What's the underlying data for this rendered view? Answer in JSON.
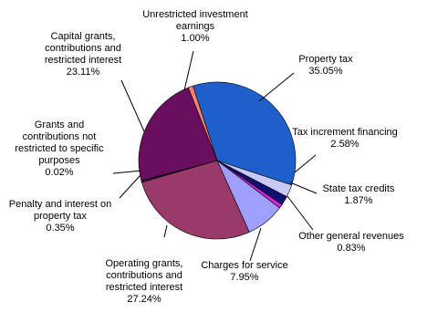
{
  "chart_data": {
    "type": "pie",
    "title": "",
    "slices": [
      {
        "name": "Property tax",
        "label_lines": [
          "Property tax"
        ],
        "value_label": "35.05%",
        "value": 35.05,
        "color": "#1f5fcc"
      },
      {
        "name": "Tax increment financing",
        "label_lines": [
          "Tax increment financing"
        ],
        "value_label": "2.58%",
        "value": 2.58,
        "color": "#c9c9f5"
      },
      {
        "name": "State tax credits",
        "label_lines": [
          "State tax credits"
        ],
        "value_label": "1.87%",
        "value": 1.87,
        "color": "#101070"
      },
      {
        "name": "Other general revenues",
        "label_lines": [
          "Other general revenues"
        ],
        "value_label": "0.83%",
        "value": 0.83,
        "color": "#e020e0"
      },
      {
        "name": "Charges for service",
        "label_lines": [
          "Charges for service"
        ],
        "value_label": "7.95%",
        "value": 7.95,
        "color": "#9f9fff"
      },
      {
        "name": "Operating grants, contributions and restricted interest",
        "label_lines": [
          "Operating grants,",
          "contributions and",
          "restricted interest"
        ],
        "value_label": "27.24%",
        "value": 27.24,
        "color": "#9a3a6b"
      },
      {
        "name": "Penalty and interest on property tax",
        "label_lines": [
          "Penalty and interest on",
          "property tax"
        ],
        "value_label": "0.35%",
        "value": 0.35,
        "color": "#3a1050"
      },
      {
        "name": "Grants and contributions not restricted to specific purposes",
        "label_lines": [
          "Grants and",
          "contributions not",
          "restricted to specific",
          "purposes"
        ],
        "value_label": "0.02%",
        "value": 0.02,
        "color": "#2a6ac9"
      },
      {
        "name": "Capital grants, contributions and restricted interest",
        "label_lines": [
          "Capital grants,",
          "contributions and",
          "restricted interest"
        ],
        "value_label": "23.11%",
        "value": 23.11,
        "color": "#6a0f60"
      },
      {
        "name": "Unrestricted investment earnings",
        "label_lines": [
          "Unrestricted investment",
          "earnings"
        ],
        "value_label": "1.00%",
        "value": 1.0,
        "color": "#ff8070"
      }
    ]
  }
}
